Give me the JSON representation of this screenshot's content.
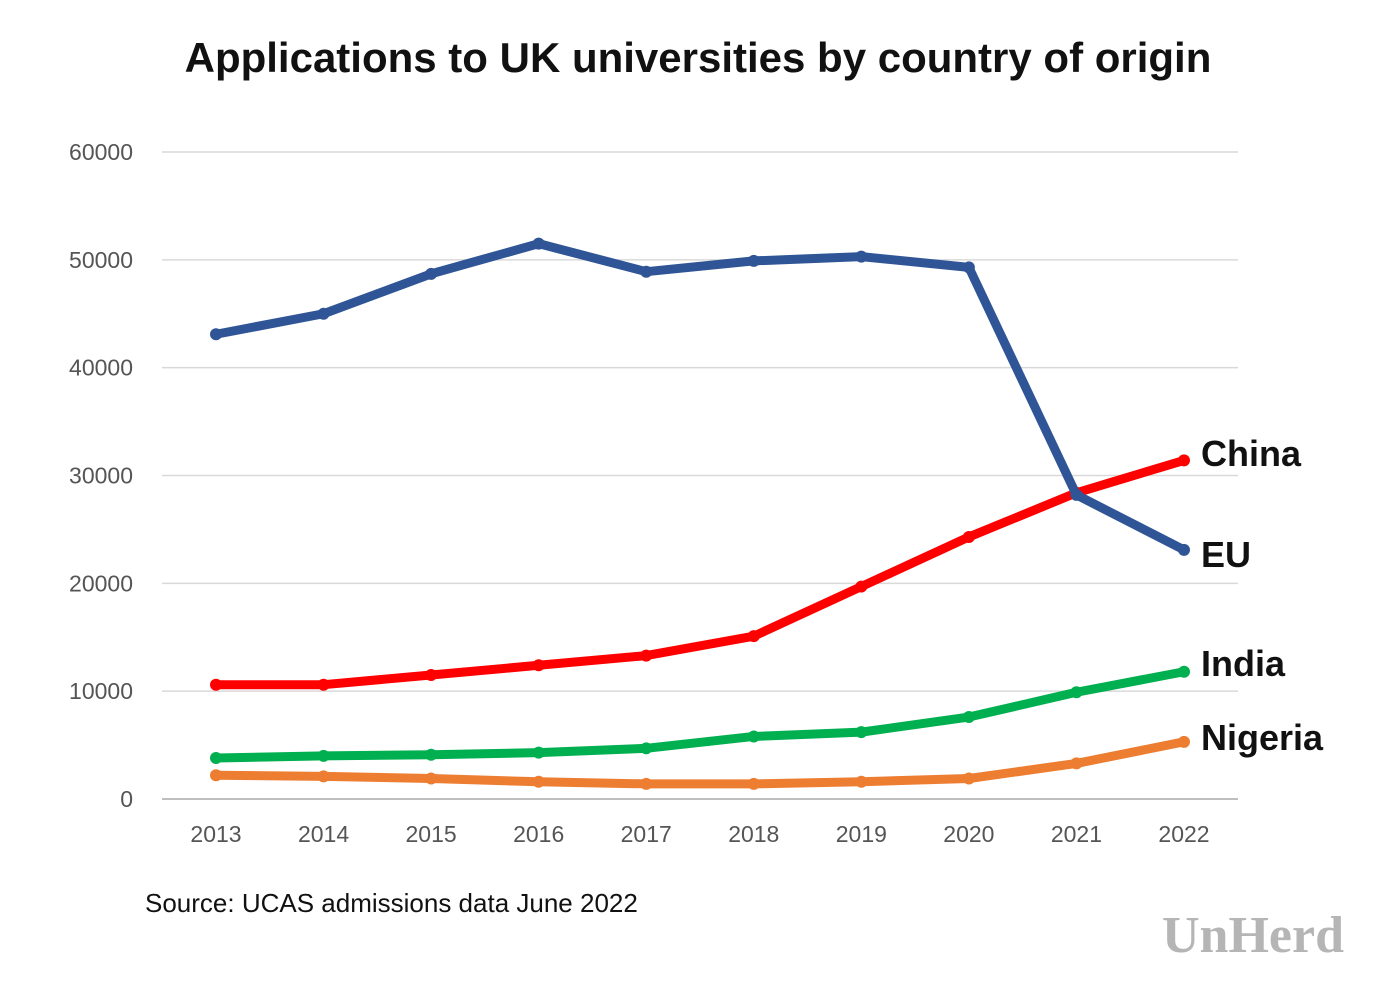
{
  "chart_data": {
    "type": "line",
    "title": "Applications to UK universities by country of origin",
    "xlabel": "",
    "ylabel": "",
    "categories": [
      "2013",
      "2014",
      "2015",
      "2016",
      "2017",
      "2018",
      "2019",
      "2020",
      "2021",
      "2022"
    ],
    "ylim": [
      0,
      60000
    ],
    "yticks": [
      0,
      10000,
      20000,
      30000,
      40000,
      50000,
      60000
    ],
    "grid": true,
    "legend": "end-of-line labels",
    "series": [
      {
        "name": "EU",
        "color": "#2f5597",
        "values": [
          43100,
          45000,
          48700,
          51500,
          48900,
          49900,
          50300,
          49300,
          28200,
          23100
        ]
      },
      {
        "name": "China",
        "color": "#ff0000",
        "values": [
          10600,
          10600,
          11500,
          12400,
          13300,
          15100,
          19700,
          24300,
          28400,
          31400
        ]
      },
      {
        "name": "India",
        "color": "#00b050",
        "values": [
          3800,
          4000,
          4100,
          4300,
          4700,
          5800,
          6200,
          7600,
          9900,
          11800
        ]
      },
      {
        "name": "Nigeria",
        "color": "#ed7d31",
        "values": [
          2200,
          2100,
          1900,
          1600,
          1400,
          1400,
          1600,
          1900,
          3300,
          5300
        ]
      }
    ]
  },
  "footer": {
    "source": "Source: UCAS admissions data June 2022",
    "brand": "UnHerd"
  }
}
